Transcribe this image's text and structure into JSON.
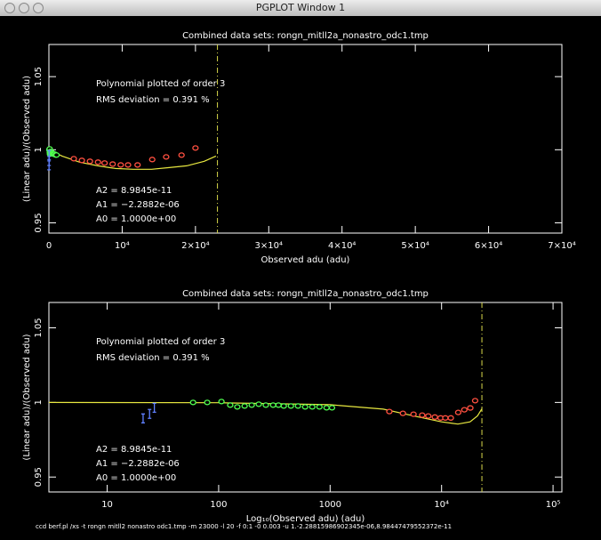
{
  "window": {
    "title": "PGPLOT Window 1"
  },
  "footer": "ccd berf.pl /xs -t rongn mitll2 nonastro odc1.tmp -m 23000 -l 20 -f 0:1 -0 0.003 -u 1.-2.28815986902345e-06,8.98447479552372e-11",
  "chart_data": [
    {
      "type": "scatter",
      "title": "Combined data sets: rongn_mitll2a_nonastro_odc1.tmp",
      "xlabel": "Observed adu (adu)",
      "ylabel": "(Linear adu)/(Observed adu)",
      "xscale": "linear",
      "annotations": [
        "Polynomial plotted of order  3",
        "RMS deviation =     0.391 %",
        "A2 = 8.9845e-11",
        "A1 = −2.2882e-06",
        "A0 = 1.0000e+00"
      ],
      "xlim": [
        0,
        70000
      ],
      "ylim": [
        0.943,
        1.072
      ],
      "xticks": [
        0,
        {
          "value": 10000,
          "label": "10⁴"
        },
        {
          "value": 20000,
          "label": "2×10⁴"
        },
        {
          "value": 30000,
          "label": "3×10⁴"
        },
        {
          "value": 40000,
          "label": "4×10⁴"
        },
        {
          "value": 50000,
          "label": "5×10⁴"
        },
        {
          "value": 60000,
          "label": "6×10⁴"
        },
        {
          "value": 70000,
          "label": "7×10⁴"
        }
      ],
      "yticks": [
        0.95,
        1,
        1.05
      ],
      "vline": {
        "x": 23000,
        "color": "#d8d84a"
      },
      "series": [
        {
          "marker": "line",
          "color": "#e8e840",
          "x": [
            0,
            1800,
            4200,
            6700,
            9100,
            11500,
            14000,
            16400,
            18800,
            21200,
            22800
          ],
          "values": [
            1.0,
            0.9957,
            0.9915,
            0.989,
            0.9872,
            0.9866,
            0.9866,
            0.9878,
            0.989,
            0.9921,
            0.9957
          ]
        },
        {
          "marker": "circle",
          "color": "#ff5040",
          "x": [
            3400,
            4500,
            5600,
            6700,
            7600,
            8700,
            9800,
            10800,
            12100,
            14100,
            16000,
            18100,
            20000
          ],
          "values": [
            0.9939,
            0.9927,
            0.9921,
            0.9915,
            0.9909,
            0.9902,
            0.9896,
            0.9896,
            0.9896,
            0.9933,
            0.9951,
            0.9963,
            1.0012
          ]
        },
        {
          "marker": "circle",
          "color": "#50ff50",
          "x": [
            59,
            79,
            106,
            127,
            147,
            171,
            198,
            229,
            265,
            308,
            344,
            384,
            445,
            515,
            597,
            692,
            802,
            929,
            1040
          ],
          "values": [
            1.0,
            1.0,
            1.0006,
            0.9982,
            0.997,
            0.9976,
            0.9982,
            0.9988,
            0.9982,
            0.9982,
            0.9982,
            0.9976,
            0.9976,
            0.9976,
            0.997,
            0.997,
            0.997,
            0.9964,
            0.9964
          ]
        },
        {
          "marker": "bar",
          "color": "#6080ff",
          "x": [
            21,
            24,
            26.5
          ],
          "values": [
            0.9893,
            0.9923,
            0.9964
          ]
        }
      ]
    },
    {
      "type": "scatter",
      "title": "Combined data sets: rongn_mitll2a_nonastro_odc1.tmp",
      "xlabel": "Log₁₀(Observed adu) (adu)",
      "ylabel": "(Linear adu)/(Observed adu)",
      "xscale": "log",
      "annotations": [
        "Polynomial plotted of order  3",
        "RMS deviation =     0.391 %",
        "A2 = 8.9845e-11",
        "A1 = −2.2882e-06",
        "A0 = 1.0000e+00"
      ],
      "xlim": [
        3,
        120000
      ],
      "ylim": [
        0.94,
        1.067
      ],
      "xticks": [
        10,
        100,
        1000,
        {
          "value": 10000,
          "label": "10⁴"
        },
        {
          "value": 100000,
          "label": "10⁵"
        }
      ],
      "yticks": [
        0.95,
        1,
        1.05
      ],
      "vline": {
        "x": 23000,
        "color": "#d8d84a"
      },
      "series": [
        {
          "marker": "line",
          "color": "#e8e840",
          "x": [
            3,
            100,
            1000,
            3000,
            6000,
            10000,
            14000,
            18000,
            21000,
            23000
          ],
          "values": [
            1.0,
            0.9998,
            0.9985,
            0.9955,
            0.9905,
            0.987,
            0.9855,
            0.987,
            0.991,
            0.9957
          ]
        },
        {
          "marker": "circle",
          "color": "#ff5040",
          "x": [
            3400,
            4500,
            5600,
            6700,
            7600,
            8700,
            9800,
            10800,
            12100,
            14100,
            16000,
            18100,
            20000
          ],
          "values": [
            0.9939,
            0.9927,
            0.9921,
            0.9915,
            0.9909,
            0.9902,
            0.9896,
            0.9896,
            0.9896,
            0.9933,
            0.9951,
            0.9963,
            1.0012
          ]
        },
        {
          "marker": "circle",
          "color": "#50ff50",
          "x": [
            59,
            79,
            106,
            127,
            147,
            171,
            198,
            229,
            265,
            308,
            344,
            384,
            445,
            515,
            597,
            692,
            802,
            929,
            1040
          ],
          "values": [
            1.0,
            1.0,
            1.0006,
            0.9982,
            0.997,
            0.9976,
            0.9982,
            0.9988,
            0.9982,
            0.9982,
            0.9982,
            0.9976,
            0.9976,
            0.9976,
            0.997,
            0.997,
            0.997,
            0.9964,
            0.9964
          ]
        },
        {
          "marker": "bar",
          "color": "#6080ff",
          "x": [
            21,
            24,
            26.5
          ],
          "values": [
            0.9893,
            0.9923,
            0.9964
          ]
        }
      ]
    }
  ]
}
